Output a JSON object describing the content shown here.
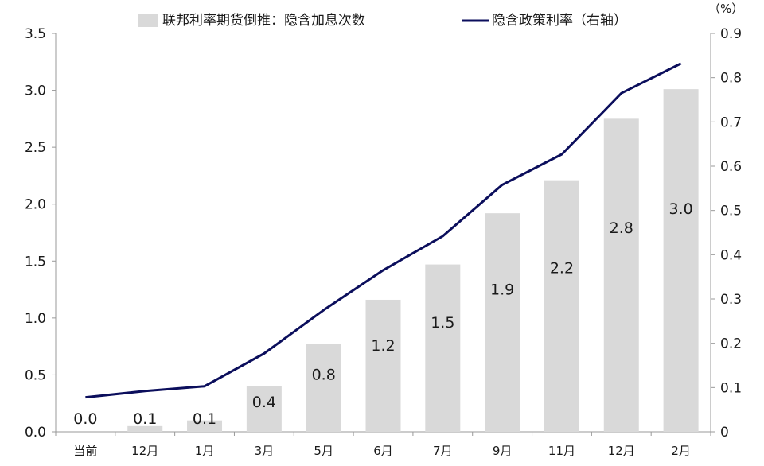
{
  "chart_data": {
    "type": "bar",
    "categories": [
      "当前",
      "12月",
      "1月",
      "3月",
      "5月",
      "6月",
      "7月",
      "9月",
      "11月",
      "12月",
      "2月"
    ],
    "series": [
      {
        "name": "联邦利率期货倒推：隐含加息次数",
        "type": "bar",
        "axis": "left",
        "values": [
          0.0,
          0.05,
          0.1,
          0.4,
          0.77,
          1.16,
          1.47,
          1.92,
          2.21,
          2.75,
          3.01
        ],
        "labels": [
          "0.0",
          "0.1",
          "0.1",
          "0.4",
          "0.8",
          "1.2",
          "1.5",
          "1.9",
          "2.2",
          "2.8",
          "3.0"
        ]
      },
      {
        "name": "隐含政策利率（右轴）",
        "type": "line",
        "axis": "right",
        "values": [
          0.078,
          0.092,
          0.103,
          0.177,
          0.275,
          0.365,
          0.442,
          0.558,
          0.627,
          0.765,
          0.832
        ]
      }
    ],
    "left_axis": {
      "min": 0,
      "max": 3.5,
      "step": 0.5,
      "ticks": [
        "0.0",
        "0.5",
        "1.0",
        "1.5",
        "2.0",
        "2.5",
        "3.0",
        "3.5"
      ]
    },
    "right_axis": {
      "min": 0,
      "max": 0.9,
      "step": 0.1,
      "unit": "（%）",
      "ticks": [
        "0",
        "0.1",
        "0.2",
        "0.3",
        "0.4",
        "0.5",
        "0.6",
        "0.7",
        "0.8",
        "0.9"
      ]
    },
    "legend_position": "top",
    "grid": false,
    "colors": {
      "bar": "#d9d9d9",
      "line": "#0b0e5c",
      "axis": "#999999",
      "text": "#1a1a1a"
    }
  }
}
